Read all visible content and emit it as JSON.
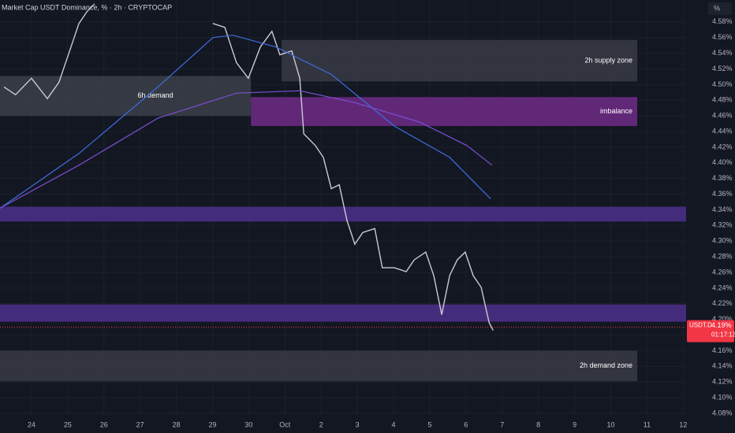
{
  "chart_data": {
    "type": "line",
    "title": "Market Cap USDT Dominance, % · 2h · CRYPTOCAP",
    "unit_label": "%",
    "grid": true,
    "xlim": [
      -0.87,
      18.08
    ],
    "ylim": [
      4.078,
      4.608
    ],
    "xticks": [
      {
        "value": 0,
        "label": "24"
      },
      {
        "value": 1,
        "label": "25"
      },
      {
        "value": 2,
        "label": "26"
      },
      {
        "value": 3,
        "label": "27"
      },
      {
        "value": 4,
        "label": "28"
      },
      {
        "value": 5,
        "label": "29"
      },
      {
        "value": 6,
        "label": "30"
      },
      {
        "value": 7,
        "label": "Oct"
      },
      {
        "value": 8,
        "label": "2"
      },
      {
        "value": 9,
        "label": "3"
      },
      {
        "value": 10,
        "label": "4"
      },
      {
        "value": 11,
        "label": "5"
      },
      {
        "value": 12,
        "label": "6"
      },
      {
        "value": 13,
        "label": "7"
      },
      {
        "value": 14,
        "label": "8"
      },
      {
        "value": 15,
        "label": "9"
      },
      {
        "value": 16,
        "label": "10"
      },
      {
        "value": 17,
        "label": "11"
      },
      {
        "value": 18,
        "label": "12"
      }
    ],
    "yticks": [
      {
        "value": 4.58,
        "label": "4.58%"
      },
      {
        "value": 4.56,
        "label": "4.56%"
      },
      {
        "value": 4.54,
        "label": "4.54%"
      },
      {
        "value": 4.52,
        "label": "4.52%"
      },
      {
        "value": 4.5,
        "label": "4.50%"
      },
      {
        "value": 4.48,
        "label": "4.48%"
      },
      {
        "value": 4.46,
        "label": "4.46%"
      },
      {
        "value": 4.44,
        "label": "4.44%"
      },
      {
        "value": 4.42,
        "label": "4.42%"
      },
      {
        "value": 4.4,
        "label": "4.40%"
      },
      {
        "value": 4.38,
        "label": "4.38%"
      },
      {
        "value": 4.36,
        "label": "4.36%"
      },
      {
        "value": 4.34,
        "label": "4.34%"
      },
      {
        "value": 4.32,
        "label": "4.32%"
      },
      {
        "value": 4.3,
        "label": "4.30%"
      },
      {
        "value": 4.28,
        "label": "4.28%"
      },
      {
        "value": 4.26,
        "label": "4.26%"
      },
      {
        "value": 4.24,
        "label": "4.24%"
      },
      {
        "value": 4.22,
        "label": "4.22%"
      },
      {
        "value": 4.2,
        "label": "4.20%"
      },
      {
        "value": 4.18,
        "label": "4.18%"
      },
      {
        "value": 4.16,
        "label": "4.16%"
      },
      {
        "value": 4.14,
        "label": "4.14%"
      },
      {
        "value": 4.12,
        "label": "4.12%"
      },
      {
        "value": 4.1,
        "label": "4.10%"
      },
      {
        "value": 4.08,
        "label": "4.08%"
      }
    ],
    "zones": [
      {
        "label": "6h demand",
        "color": "#3a3d47",
        "x": [
          -0.87,
          6.06
        ],
        "y": [
          4.46,
          4.511
        ]
      },
      {
        "label": "2h supply zone",
        "color": "#363944",
        "x": [
          6.91,
          16.73
        ],
        "y": [
          4.504,
          4.557
        ]
      },
      {
        "label": "imbalance",
        "color": "#6a2a82",
        "x": [
          6.06,
          16.73
        ],
        "y": [
          4.447,
          4.484
        ]
      },
      {
        "color": "#4a2f86",
        "x": [
          -0.87,
          18.08
        ],
        "y": [
          4.325,
          4.344
        ]
      },
      {
        "color": "#4a2f86",
        "x": [
          -0.87,
          18.08
        ],
        "y": [
          4.197,
          4.219
        ]
      },
      {
        "label": "2h demand zone",
        "color": "#363944",
        "x": [
          -0.87,
          16.73
        ],
        "y": [
          4.121,
          4.16
        ]
      }
    ],
    "series": [
      {
        "color": "#c9cbd2",
        "x": [
          -0.76,
          -0.44,
          0,
          0.44,
          0.76,
          1.09,
          1.31,
          1.53,
          1.74,
          null,
          5.01,
          5.34,
          5.66,
          5.99,
          6.32,
          6.64,
          6.86,
          7.19,
          7.41,
          7.52,
          7.84,
          8.06,
          8.28,
          8.5,
          8.71,
          8.93,
          9.15,
          9.48,
          9.69,
          10.02,
          10.35,
          10.57,
          10.89,
          11.11,
          11.33,
          11.55,
          11.76,
          11.98,
          12.2,
          12.42,
          12.64,
          12.75
        ],
        "values": [
          4.497,
          4.487,
          4.508,
          4.482,
          4.503,
          4.548,
          4.578,
          4.593,
          4.603,
          null,
          4.578,
          4.573,
          4.528,
          4.508,
          4.548,
          4.568,
          4.538,
          4.543,
          4.508,
          4.437,
          4.422,
          4.407,
          4.367,
          4.372,
          4.327,
          4.296,
          4.311,
          4.316,
          4.266,
          4.266,
          4.261,
          4.276,
          4.286,
          4.256,
          4.206,
          4.256,
          4.276,
          4.286,
          4.256,
          4.241,
          4.196,
          4.186
        ]
      },
      {
        "color": "#3d6fe0",
        "x": [
          -0.87,
          1.31,
          3.49,
          5.01,
          5.56,
          6.75,
          8.28,
          10.02,
          11.55,
          12.68
        ],
        "values": [
          4.342,
          4.412,
          4.497,
          4.56,
          4.563,
          4.548,
          4.513,
          4.447,
          4.407,
          4.354
        ]
      },
      {
        "color": "#7b4fd0",
        "x": [
          -0.87,
          1.31,
          3.49,
          5.66,
          7.41,
          8.93,
          10.72,
          12.03,
          12.72
        ],
        "values": [
          4.342,
          4.397,
          4.457,
          4.489,
          4.492,
          4.477,
          4.452,
          4.422,
          4.397
        ]
      }
    ],
    "last_price": {
      "symbol": "USDT.D",
      "value": 4.19,
      "label": "4.19%",
      "countdown": "01:17:13"
    }
  }
}
